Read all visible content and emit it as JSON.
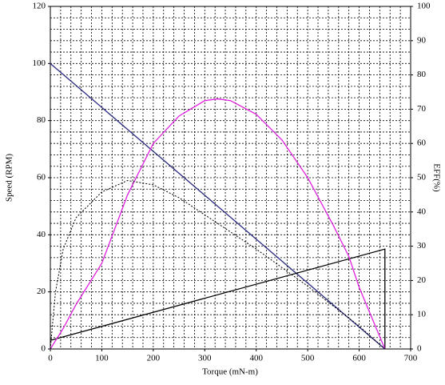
{
  "chart_data": {
    "type": "line",
    "xlabel": "Torque (mN-m)",
    "ylabel": "Speed (RPM)",
    "y2label": "EFF(%)",
    "xlim": [
      0,
      700
    ],
    "ylim": [
      0,
      120
    ],
    "y2lim": [
      0,
      100
    ],
    "xticks": [
      0,
      100,
      200,
      300,
      400,
      500,
      600,
      700
    ],
    "yticks": [
      0,
      20,
      40,
      60,
      80,
      100,
      120
    ],
    "y2ticks": [
      0,
      10,
      20,
      30,
      40,
      50,
      60,
      70,
      80,
      90,
      100
    ],
    "grid": true,
    "grid_xticks": [
      0,
      20,
      40,
      60,
      80,
      100,
      120,
      140,
      160,
      180,
      200,
      220,
      240,
      260,
      280,
      300,
      320,
      340,
      360,
      380,
      400,
      420,
      440,
      460,
      480,
      500,
      520,
      540,
      560,
      580,
      600,
      620,
      640,
      660,
      680,
      700
    ],
    "grid_yticks": [
      0,
      4,
      8,
      12,
      16,
      20,
      24,
      28,
      32,
      36,
      40,
      44,
      48,
      52,
      56,
      60,
      64,
      68,
      72,
      76,
      80,
      84,
      88,
      92,
      96,
      100,
      104,
      108,
      112,
      116,
      120
    ],
    "series": [
      {
        "color": "#2b2b80",
        "dash": false,
        "x": [
          0,
          650
        ],
        "values": [
          100,
          0
        ]
      },
      {
        "color": "#000000",
        "dash": false,
        "x": [
          0,
          650,
          650
        ],
        "values": [
          3,
          35,
          0
        ]
      },
      {
        "color": "#e020e0",
        "dash": false,
        "axis": "y2",
        "x": [
          0,
          25,
          50,
          100,
          150,
          200,
          250,
          300,
          325,
          350,
          400,
          450,
          500,
          550,
          580,
          600,
          625,
          650
        ],
        "values": [
          0,
          6,
          13,
          25,
          45,
          60,
          68,
          72.5,
          73,
          72.5,
          68.5,
          61,
          50,
          36,
          27,
          18,
          9,
          0
        ]
      },
      {
        "color": "#000000",
        "dash": true,
        "x": [
          0,
          10,
          25,
          50,
          100,
          150,
          200,
          250,
          300,
          350,
          400,
          450,
          500,
          550,
          600,
          650
        ],
        "values": [
          0,
          20,
          35,
          46,
          55,
          59,
          57.5,
          53,
          47,
          41,
          35,
          28.5,
          22,
          15,
          8,
          0
        ]
      }
    ]
  }
}
